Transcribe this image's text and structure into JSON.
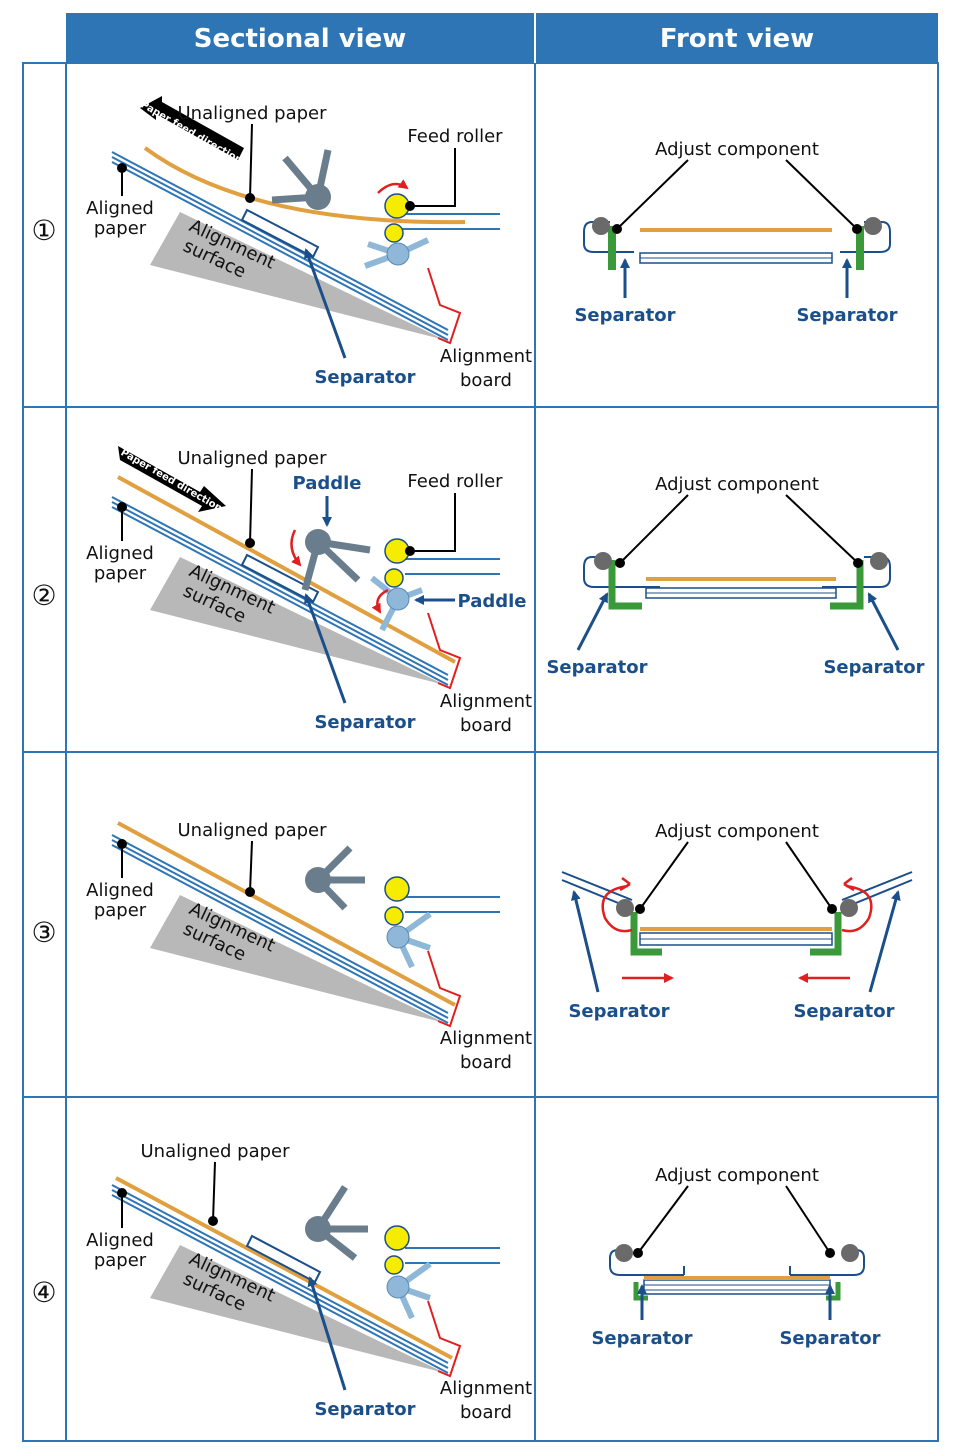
{
  "headers": {
    "sectional": "Sectional view",
    "front": "Front view"
  },
  "rows": [
    {
      "num": "①",
      "unaligned": "Unaligned paper",
      "feed_roller": "Feed roller",
      "aligned_l1": "Aligned",
      "aligned_l2": "paper",
      "surface_l1": "Alignment",
      "surface_l2": "surface",
      "separator": "Separator",
      "board_l1": "Alignment",
      "board_l2": "board",
      "feed_dir": "Paper feed direction",
      "adjust": "Adjust component",
      "sep_left": "Separator",
      "sep_right": "Separator"
    },
    {
      "num": "②",
      "unaligned": "Unaligned paper",
      "feed_roller": "Feed roller",
      "aligned_l1": "Aligned",
      "aligned_l2": "paper",
      "surface_l1": "Alignment",
      "surface_l2": "surface",
      "separator": "Separator",
      "board_l1": "Alignment",
      "board_l2": "board",
      "feed_dir": "Paper feed direction",
      "paddle_top": "Paddle",
      "paddle_right": "Paddle",
      "adjust": "Adjust component",
      "sep_left": "Separator",
      "sep_right": "Separator"
    },
    {
      "num": "③",
      "unaligned": "Unaligned paper",
      "aligned_l1": "Aligned",
      "aligned_l2": "paper",
      "surface_l1": "Alignment",
      "surface_l2": "surface",
      "board_l1": "Alignment",
      "board_l2": "board",
      "adjust": "Adjust component",
      "sep_left": "Separator",
      "sep_right": "Separator"
    },
    {
      "num": "④",
      "unaligned": "Unaligned paper",
      "aligned_l1": "Aligned",
      "aligned_l2": "paper",
      "surface_l1": "Alignment",
      "surface_l2": "surface",
      "separator": "Separator",
      "board_l1": "Alignment",
      "board_l2": "board",
      "adjust": "Adjust component",
      "sep_left": "Separator",
      "sep_right": "Separator"
    }
  ],
  "colors": {
    "header": "#2e75b6",
    "grid": "#2e75b6",
    "paper": "#e0a040",
    "roller": "#f5ec00",
    "paddle": "#6a7d8c",
    "lower_roller": "#8fb8d8",
    "separator_green": "#3a9a3a",
    "red": "#e02020",
    "surface": "#b8b8b8",
    "blue_text": "#1b4f8a"
  }
}
